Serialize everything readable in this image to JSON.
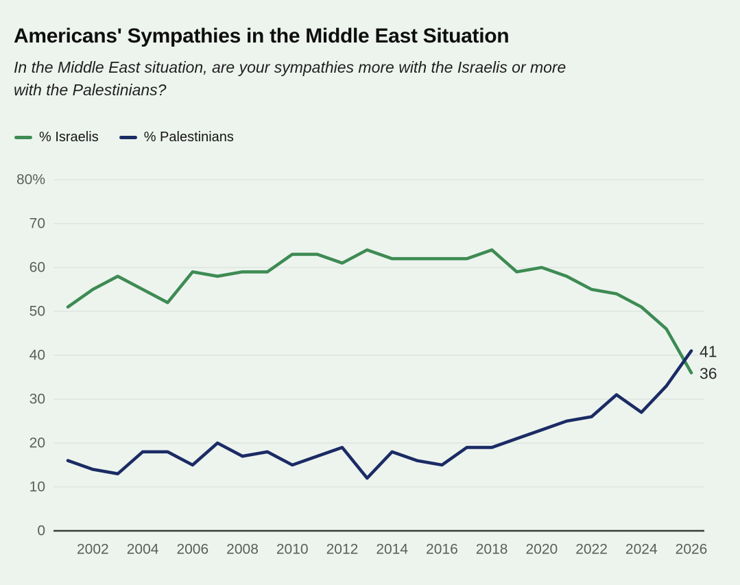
{
  "colors": {
    "background": "#edf4ee",
    "title_text": "#0e0e0e",
    "axis_text": "#5b5e5b",
    "gridline": "#dfe5df",
    "axis_line": "#3b3b3b",
    "end_label_text": "#2c2c2c",
    "israelis_green": "#3e8b54",
    "palestinians_navy": "#1b2b64"
  },
  "header": {
    "title": "Americans' Sympathies in the Middle East Situation",
    "subtitle_line1": "In the Middle East situation, are your sympathies more with the Israelis or more",
    "subtitle_line2": "with the Palestinians?"
  },
  "chart_data": {
    "type": "line",
    "title": "Americans' Sympathies in the Middle East Situation",
    "subtitle": "In the Middle East situation, are your sympathies more with the Israelis or more with the Palestinians?",
    "xlabel": "",
    "ylabel": "",
    "ylim": [
      0,
      80
    ],
    "grid": true,
    "legend_position": "top-left",
    "x": [
      2001,
      2002,
      2003,
      2004,
      2005,
      2006,
      2007,
      2008,
      2009,
      2010,
      2011,
      2012,
      2013,
      2014,
      2015,
      2016,
      2017,
      2018,
      2019,
      2020,
      2021,
      2022,
      2023,
      2024,
      2025,
      2026
    ],
    "xticks": [
      2002,
      2004,
      2006,
      2008,
      2010,
      2012,
      2014,
      2016,
      2018,
      2020,
      2022,
      2024,
      2026
    ],
    "yticks": [
      80,
      70,
      60,
      50,
      40,
      30,
      20,
      10,
      0
    ],
    "ytick_labels": [
      "80%",
      "70",
      "60",
      "50",
      "40",
      "30",
      "20",
      "10",
      "0"
    ],
    "series": [
      {
        "name": "% Israelis",
        "color": "#3e8b54",
        "end_label": "36",
        "values": [
          51,
          55,
          58,
          55,
          52,
          59,
          58,
          59,
          59,
          63,
          63,
          61,
          64,
          62,
          62,
          62,
          62,
          64,
          59,
          60,
          58,
          55,
          54,
          51,
          46,
          36
        ]
      },
      {
        "name": "% Palestinians",
        "color": "#1b2b64",
        "end_label": "41",
        "values": [
          16,
          14,
          13,
          18,
          18,
          15,
          20,
          17,
          18,
          15,
          17,
          19,
          12,
          18,
          16,
          15,
          19,
          19,
          21,
          23,
          25,
          26,
          31,
          27,
          33,
          41
        ]
      }
    ]
  }
}
